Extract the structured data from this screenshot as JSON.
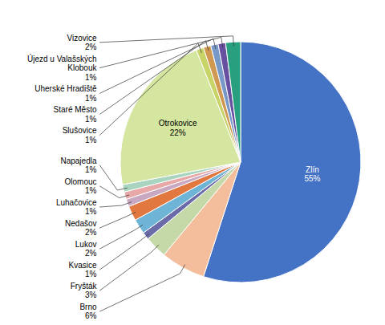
{
  "chart_data": {
    "type": "pie",
    "categories": [
      "Zlín",
      "Brno",
      "Fryšták",
      "Kvasice",
      "Lukov",
      "Nedašov",
      "Luhačovice",
      "Olomouc",
      "Napajedla",
      "Otrokovice",
      "Slušovice",
      "Staré Město",
      "Uherské Hradiště",
      "Újezd u Valašských Klobouk",
      "Vizovice"
    ],
    "values": [
      55,
      6,
      3,
      1,
      2,
      2,
      1,
      1,
      1,
      22,
      1,
      1,
      1,
      1,
      2
    ],
    "value_labels": [
      "55%",
      "6%",
      "3%",
      "1%",
      "2%",
      "2%",
      "1%",
      "1%",
      "1%",
      "22%",
      "1%",
      "1%",
      "1%",
      "1%",
      "2%"
    ],
    "colors": [
      "#4472C4",
      "#F4BE9C",
      "#C5D9A8",
      "#6B6BAA",
      "#6DB4D6",
      "#E07840",
      "#C8A8C0",
      "#E8A8A8",
      "#A8D4C0",
      "#D4E6A0",
      "#C8D468",
      "#D09850",
      "#7898C8",
      "#6850A0",
      "#28A080"
    ]
  }
}
